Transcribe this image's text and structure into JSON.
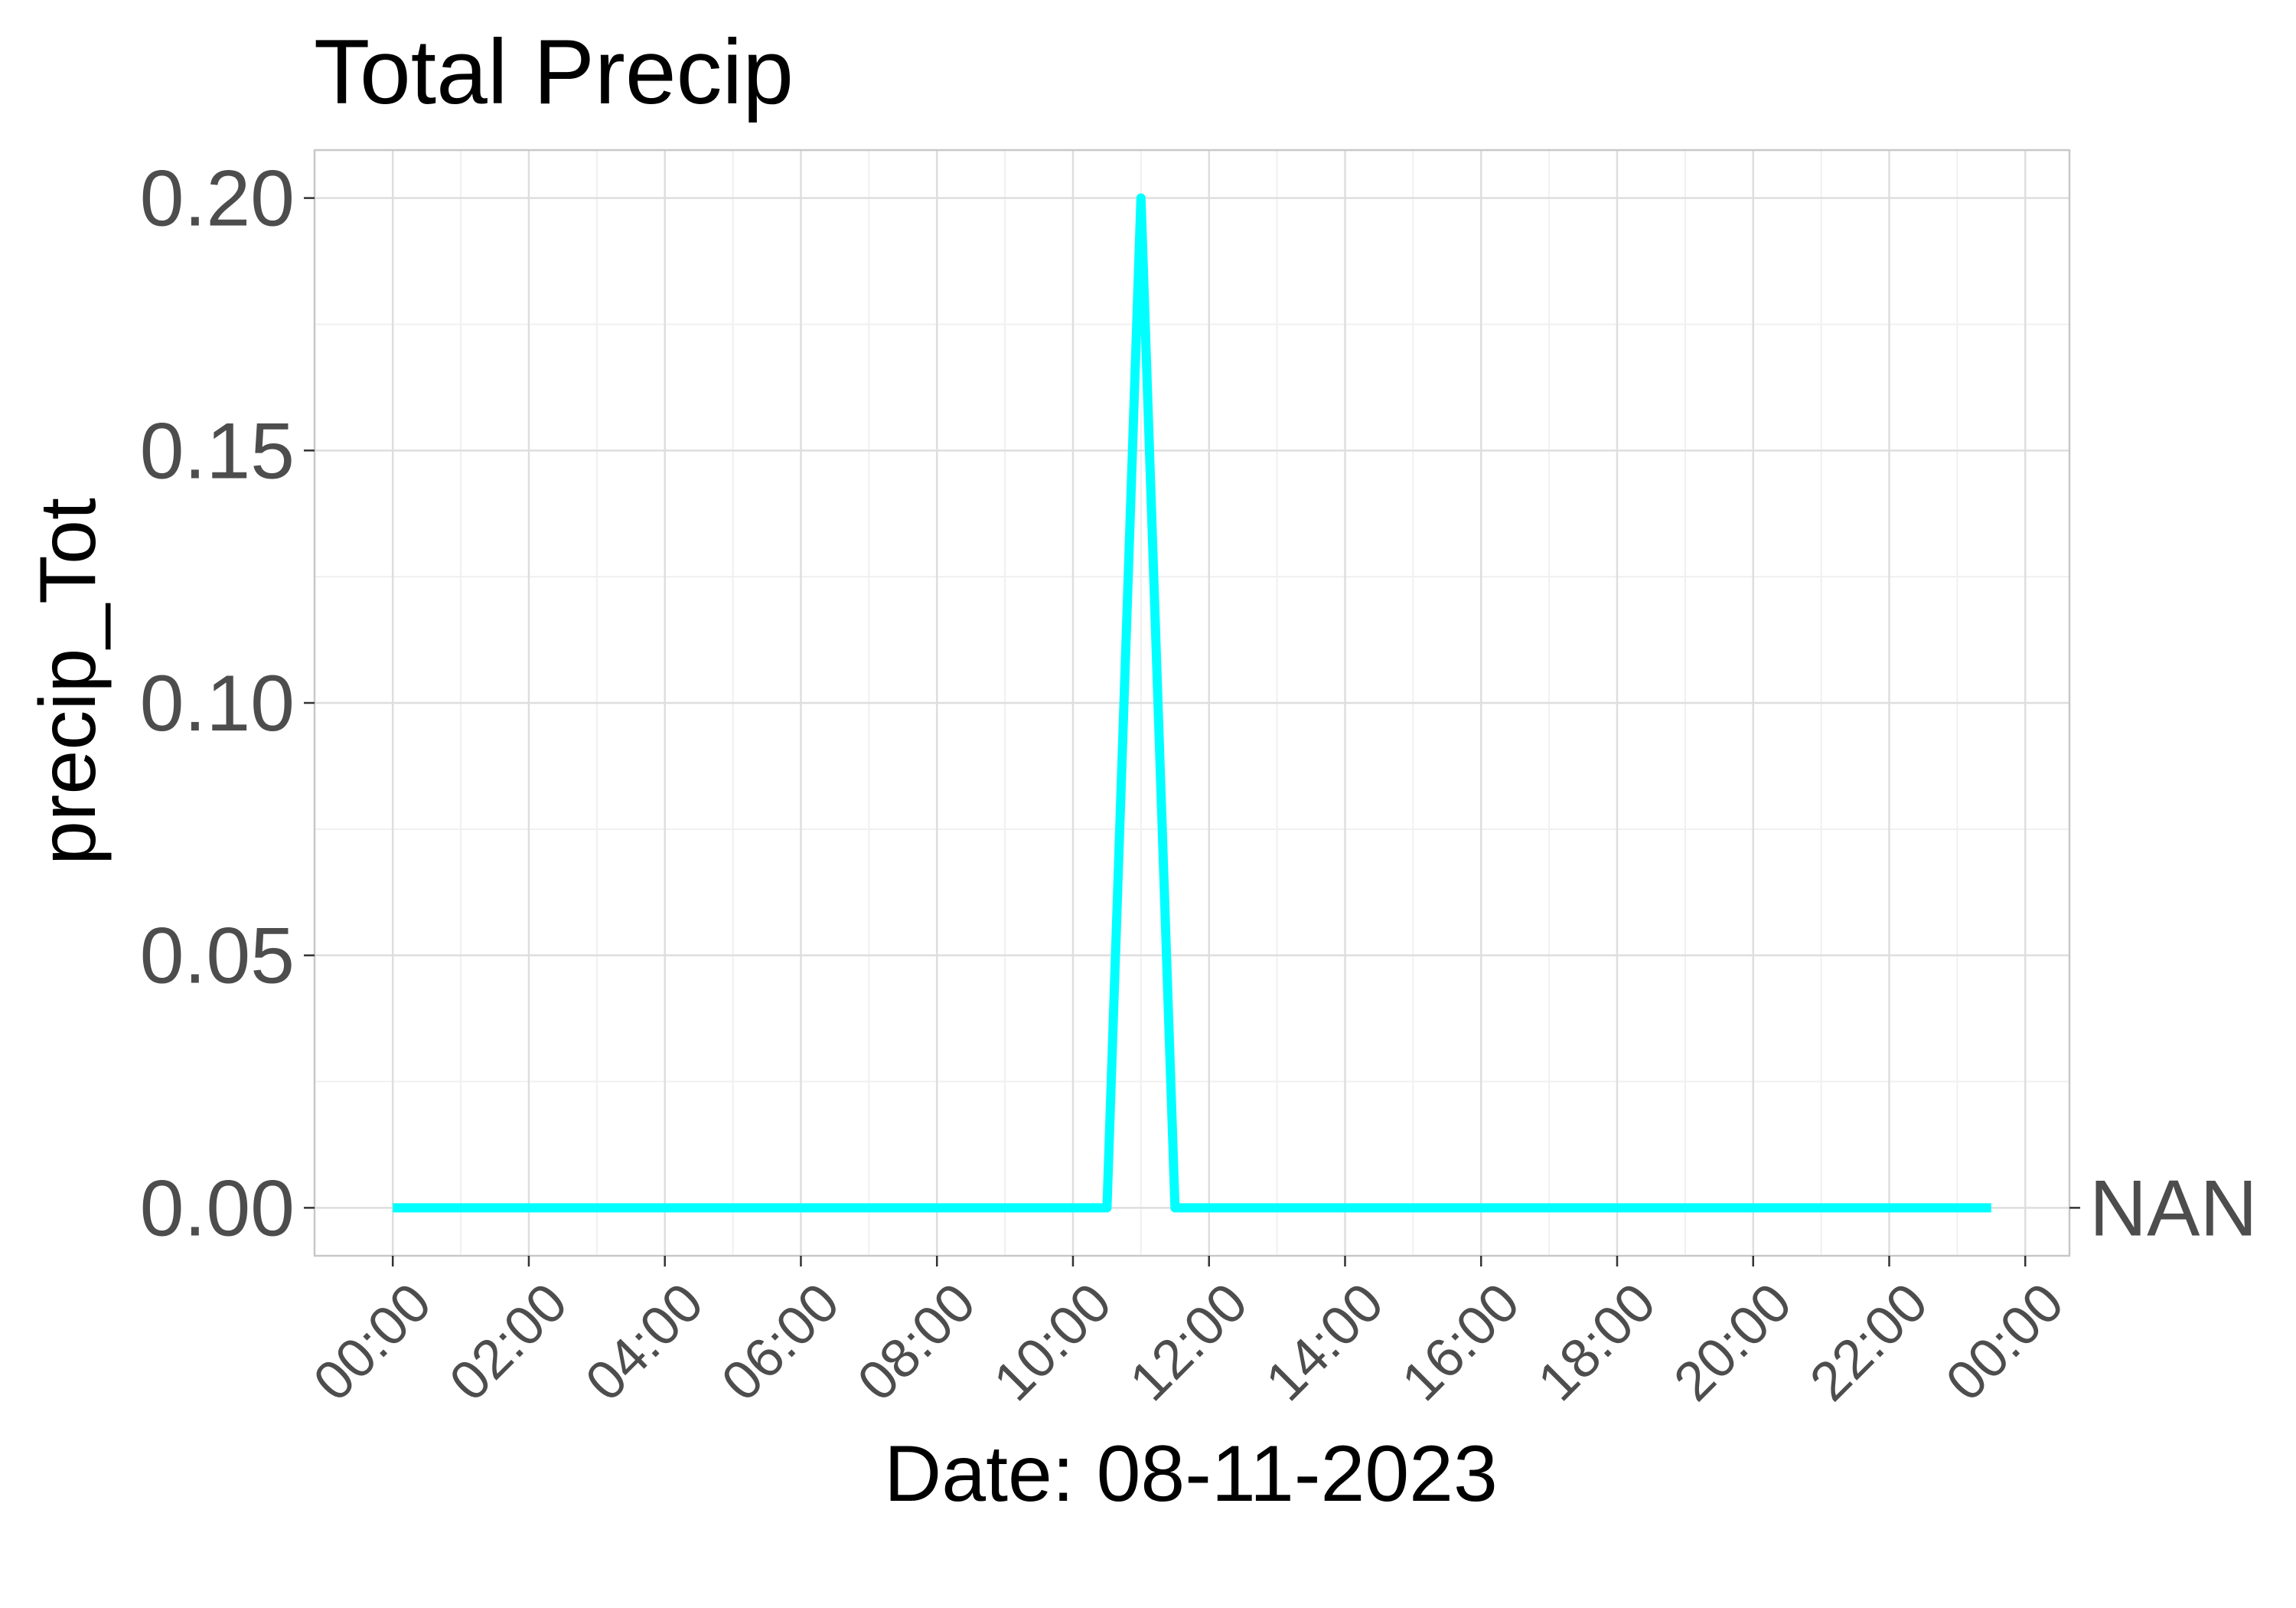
{
  "chart_data": {
    "type": "line",
    "title": "Total Precip",
    "xlabel": "Date: 08-11-2023",
    "ylabel": "precip_Tot",
    "ylim": [
      -0.0095,
      0.2095
    ],
    "xlim_hours": [
      -1.15,
      24.65
    ],
    "y_ticks": [
      0.0,
      0.05,
      0.1,
      0.15,
      0.2
    ],
    "y_tick_labels": [
      "0.00",
      "0.05",
      "0.10",
      "0.15",
      "0.20"
    ],
    "x_tick_hours": [
      0,
      2,
      4,
      6,
      8,
      10,
      12,
      14,
      16,
      18,
      20,
      22,
      24
    ],
    "x_tick_labels": [
      "00:00",
      "02:00",
      "04:00",
      "06:00",
      "08:00",
      "10:00",
      "12:00",
      "14:00",
      "16:00",
      "18:00",
      "20:00",
      "22:00",
      "00:00"
    ],
    "grid": true,
    "legend": "none",
    "series": [
      {
        "color": "#00ffff",
        "end_label": "NAN",
        "x_hours": [
          0,
          10.5,
          11.0,
          11.5,
          23.5
        ],
        "values": [
          0.0,
          0.0,
          0.2,
          0.0,
          0.0
        ]
      }
    ]
  }
}
